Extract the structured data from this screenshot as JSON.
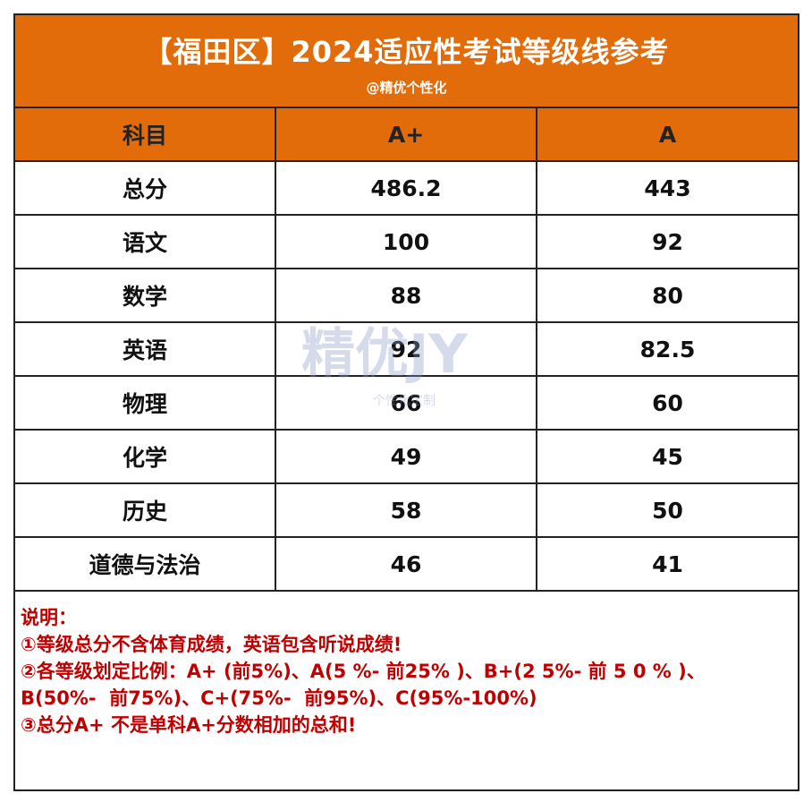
{
  "header": {
    "title": "【福田区】2024适应性考试等级线参考",
    "subtitle": "@精优个性化"
  },
  "table": {
    "columns": [
      "科目",
      "A+",
      "A"
    ],
    "rows": [
      [
        "总分",
        486.2,
        443
      ],
      [
        "语文",
        100,
        92
      ],
      [
        "数学",
        88,
        80
      ],
      [
        "英语",
        92,
        82.5
      ],
      [
        "物理",
        66,
        60
      ],
      [
        "化学",
        49,
        45
      ],
      [
        "历史",
        58,
        50
      ],
      [
        "道德与法治",
        46,
        41
      ]
    ]
  },
  "watermark": {
    "logo": "精优JY",
    "tagline": "个性化定制"
  },
  "notes": {
    "heading": "说明：",
    "lines": [
      "①等级总分不含体育成绩，英语包含听说成绩!",
      "②各等级划定比例：A+ (前5%)、A(5 %- 前25% )、B+(2 5%- 前 5 0 % )、",
      "B(50%-  前75%)、C+(75%-  前95%)、C(95%-100%)",
      "③总分A+ 不是单科A+分数相加的总和!"
    ]
  }
}
